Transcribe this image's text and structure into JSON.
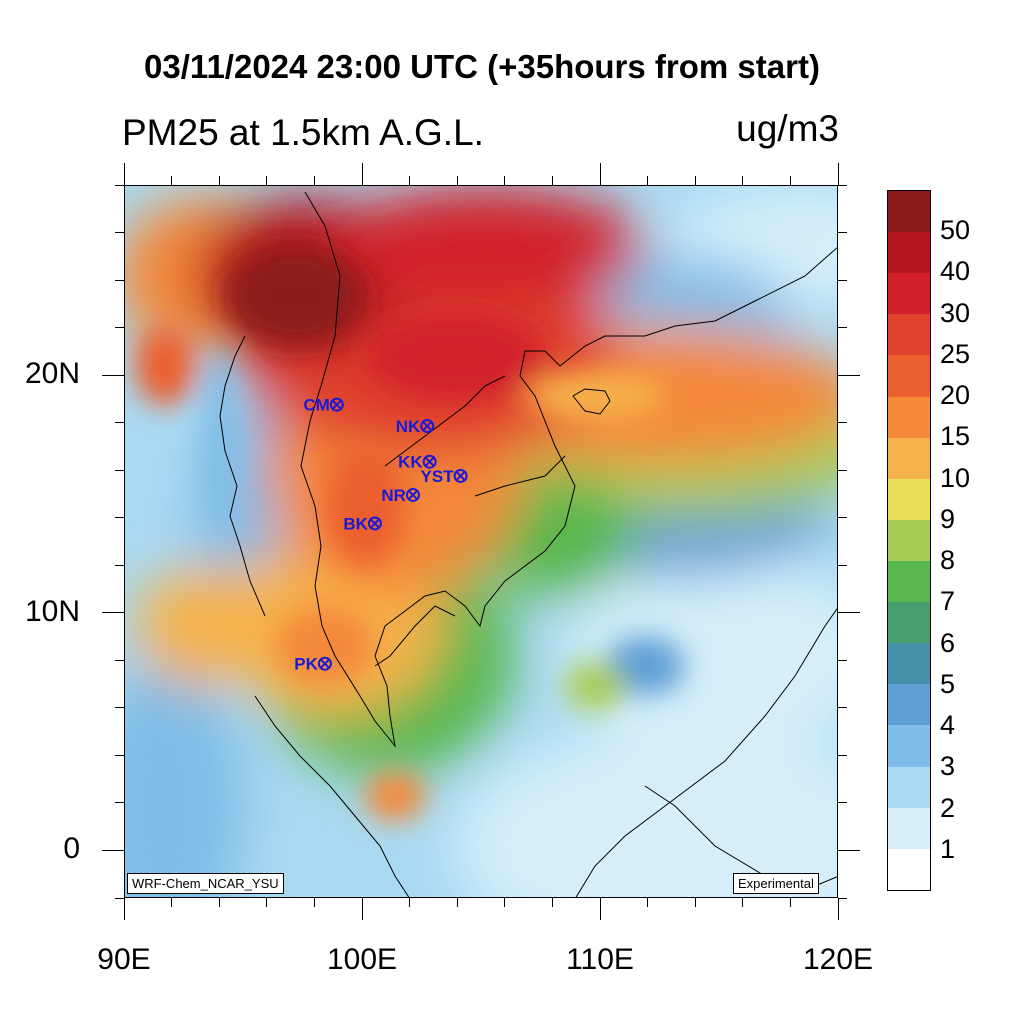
{
  "title": "03/11/2024 23:00 UTC (+35hours from start)",
  "subtitle": "PM25 at 1.5km A.G.L.",
  "units": "ug/m3",
  "credit_left": "WRF-Chem_NCAR_YSU",
  "credit_right": "Experimental",
  "x_axis": {
    "labels": [
      "90E",
      "100E",
      "110E",
      "120E"
    ],
    "lon": [
      90,
      100,
      110,
      120
    ]
  },
  "y_axis": {
    "labels": [
      "0",
      "10N",
      "20N"
    ],
    "lat": [
      0,
      10,
      20
    ]
  },
  "map_extent": {
    "lon": [
      90,
      120
    ],
    "lat": [
      -2,
      28
    ]
  },
  "stations": [
    {
      "name": "CM",
      "lon": 98.9,
      "lat": 18.8
    },
    {
      "name": "NK",
      "lon": 102.7,
      "lat": 17.9
    },
    {
      "name": "KK",
      "lon": 102.8,
      "lat": 16.4
    },
    {
      "name": "YST",
      "lon": 104.1,
      "lat": 15.8
    },
    {
      "name": "NR",
      "lon": 102.1,
      "lat": 15.0
    },
    {
      "name": "BK",
      "lon": 100.5,
      "lat": 13.8
    },
    {
      "name": "PK",
      "lon": 98.4,
      "lat": 7.9
    }
  ],
  "colorbar": {
    "labels": [
      "50",
      "40",
      "30",
      "25",
      "20",
      "15",
      "10",
      "9",
      "8",
      "7",
      "6",
      "5",
      "4",
      "3",
      "2",
      "1"
    ],
    "colors": [
      "#8c1a1a",
      "#b5171f",
      "#d2202a",
      "#e0412d",
      "#ec5f2f",
      "#f4893a",
      "#f6b24c",
      "#e9df59",
      "#a9cc57",
      "#57b74d",
      "#45a06e",
      "#4490a8",
      "#5e9fd6",
      "#7fbde8",
      "#a9daf2",
      "#d5eef9",
      "#ffffff"
    ]
  }
}
